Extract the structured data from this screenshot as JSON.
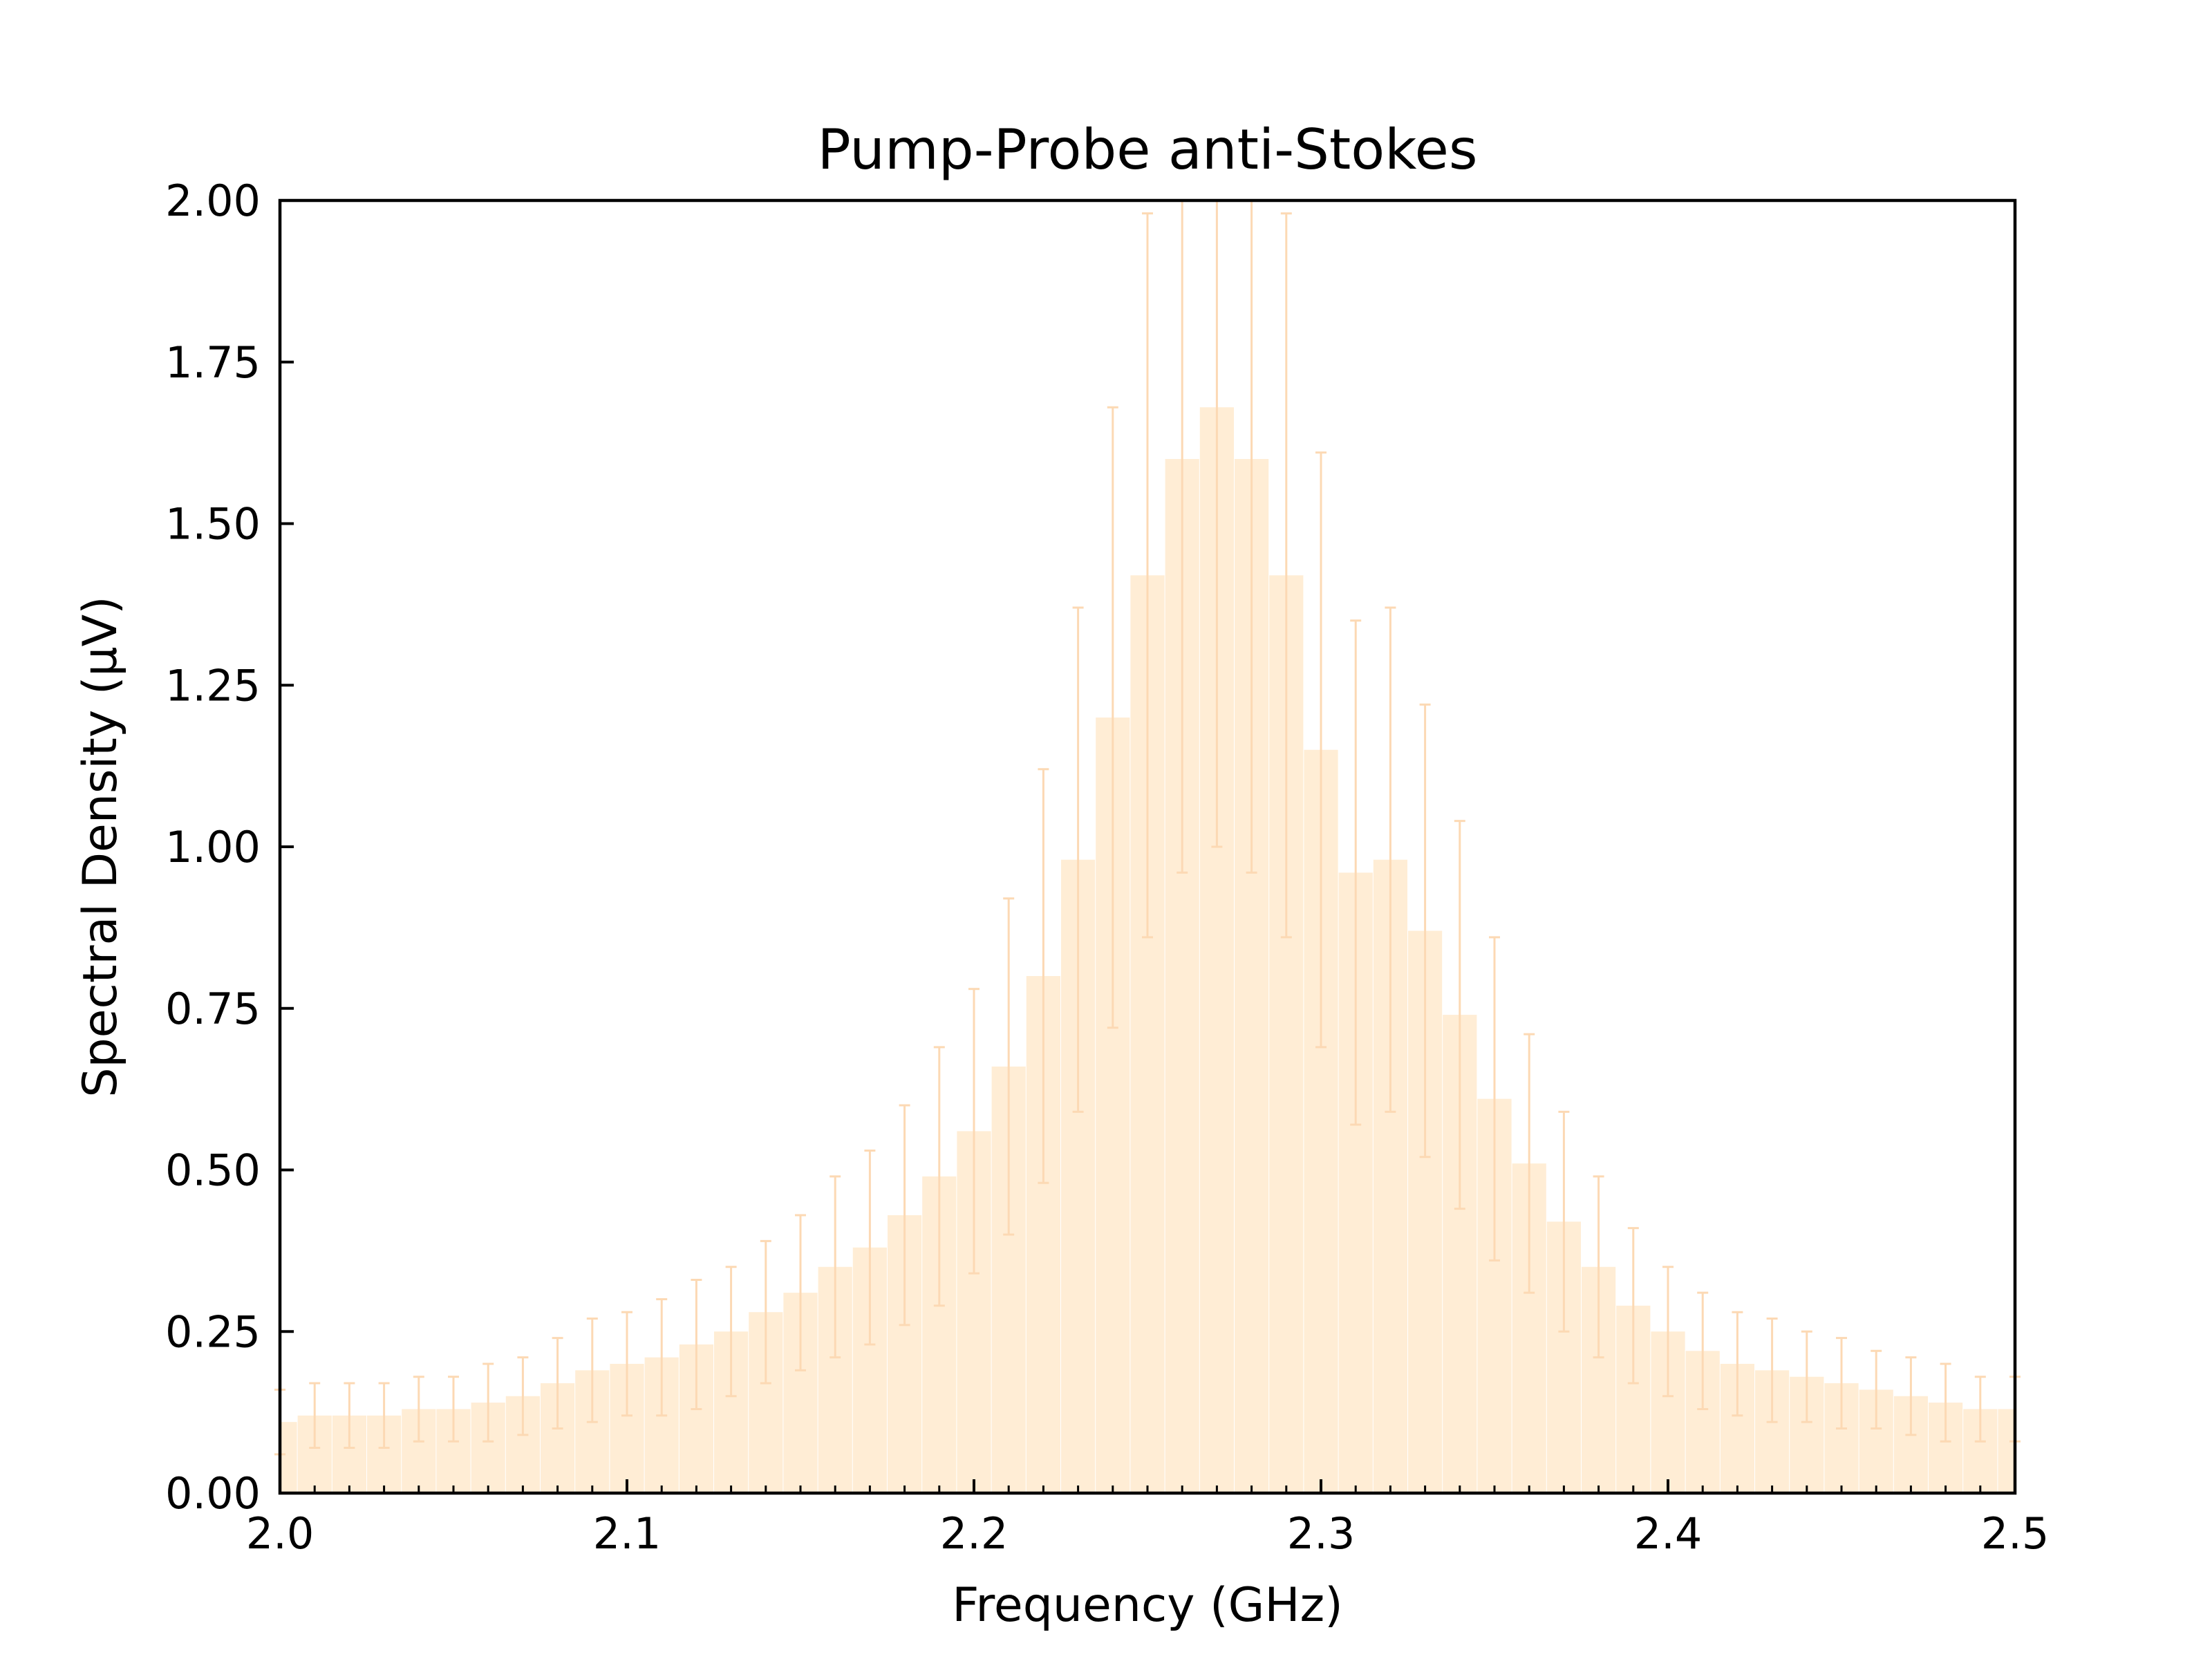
{
  "chart_data": {
    "type": "bar",
    "title": "Pump-Probe anti-Stokes",
    "xlabel": "Frequency (GHz)",
    "ylabel": "Spectral Density (µV)",
    "xlim": [
      2.0,
      2.5
    ],
    "ylim": [
      0.0,
      2.0
    ],
    "x_ticks": [
      "2.0",
      "2.1",
      "2.2",
      "2.3",
      "2.4",
      "2.5"
    ],
    "y_ticks": [
      "0.00",
      "0.25",
      "0.50",
      "0.75",
      "1.00",
      "1.25",
      "1.50",
      "1.75",
      "2.00"
    ],
    "grid": false,
    "legend": "none",
    "colors": {
      "bar_fill": "#ffedd5",
      "error_bar": "#fcd9b4",
      "axes": "#000000"
    },
    "series": [
      {
        "x": [
          2.0,
          2.01,
          2.02,
          2.03,
          2.04,
          2.05,
          2.06,
          2.07,
          2.08,
          2.09,
          2.1,
          2.11,
          2.12,
          2.13,
          2.14,
          2.15,
          2.16,
          2.17,
          2.18,
          2.19,
          2.2,
          2.21,
          2.22,
          2.23,
          2.24,
          2.25,
          2.26,
          2.27,
          2.28,
          2.29,
          2.3,
          2.31,
          2.32,
          2.33,
          2.34,
          2.35,
          2.36,
          2.37,
          2.38,
          2.39,
          2.4,
          2.41,
          2.42,
          2.43,
          2.44,
          2.45,
          2.46,
          2.47,
          2.48,
          2.49,
          2.5
        ],
        "values": [
          0.11,
          0.12,
          0.12,
          0.12,
          0.13,
          0.13,
          0.14,
          0.15,
          0.17,
          0.19,
          0.2,
          0.21,
          0.23,
          0.25,
          0.28,
          0.31,
          0.35,
          0.38,
          0.43,
          0.49,
          0.56,
          0.66,
          0.8,
          0.98,
          1.2,
          1.42,
          1.6,
          1.68,
          1.6,
          1.42,
          1.15,
          0.96,
          0.98,
          0.87,
          0.74,
          0.61,
          0.51,
          0.42,
          0.35,
          0.29,
          0.25,
          0.22,
          0.2,
          0.19,
          0.18,
          0.17,
          0.16,
          0.15,
          0.14,
          0.13,
          0.13
        ],
        "error": [
          0.05,
          0.05,
          0.05,
          0.05,
          0.05,
          0.05,
          0.06,
          0.06,
          0.07,
          0.08,
          0.08,
          0.09,
          0.1,
          0.1,
          0.11,
          0.12,
          0.14,
          0.15,
          0.17,
          0.2,
          0.22,
          0.26,
          0.32,
          0.39,
          0.48,
          0.56,
          0.64,
          0.68,
          0.64,
          0.56,
          0.46,
          0.39,
          0.39,
          0.35,
          0.3,
          0.25,
          0.2,
          0.17,
          0.14,
          0.12,
          0.1,
          0.09,
          0.08,
          0.08,
          0.07,
          0.07,
          0.06,
          0.06,
          0.06,
          0.05,
          0.05
        ]
      }
    ]
  }
}
